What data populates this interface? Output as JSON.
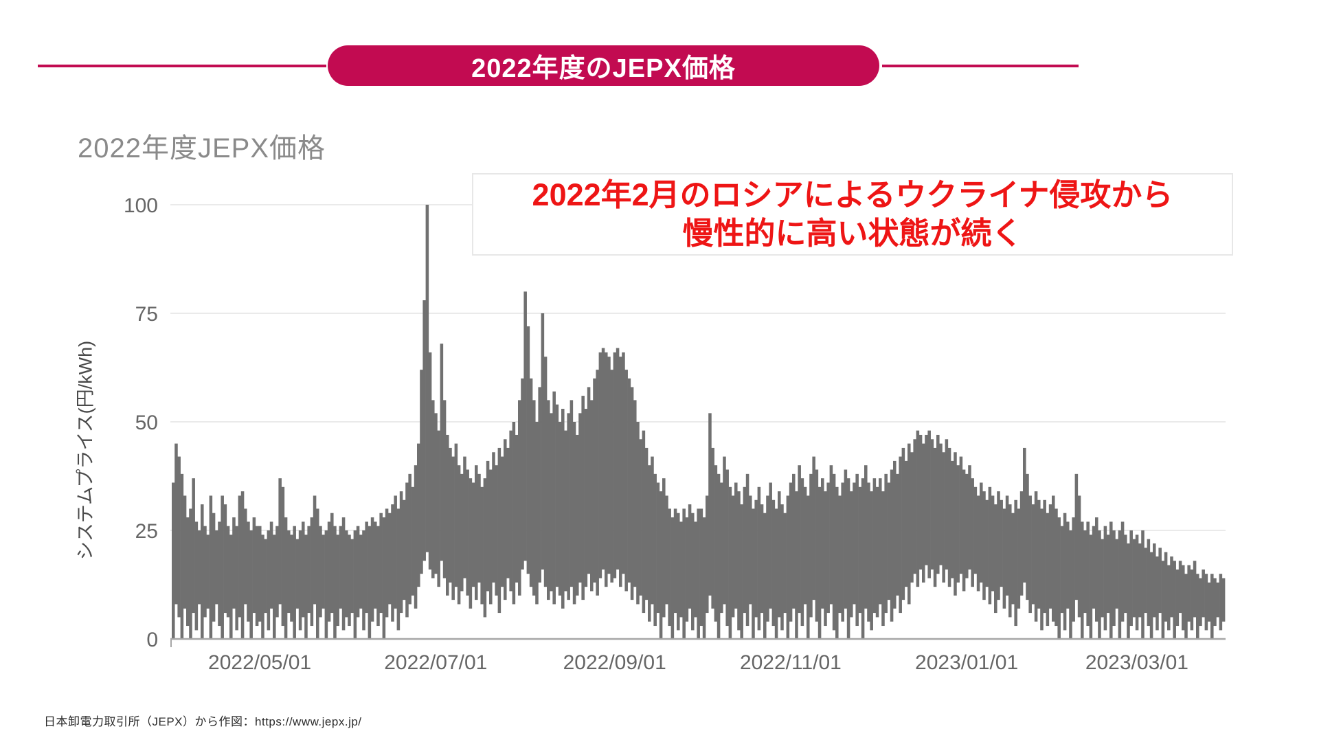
{
  "banner": {
    "title": "2022年度のJEPX価格",
    "color": "#c20b51"
  },
  "chart": {
    "title": "2022年度JEPX価格",
    "y_axis_label": "システムプライス(円/kWh)",
    "annotation": {
      "line1": "2022年2月のロシアによるウクライナ侵攻から",
      "line2": "慢性的に高い状態が続く",
      "text_color": "#ee1515"
    }
  },
  "footer": {
    "source": "日本卸電力取引所（JEPX）から作図：https://www.jepx.jp/"
  },
  "chart_data": {
    "type": "bar",
    "title": "2022年度JEPX価格",
    "xlabel": "",
    "ylabel": "システムプライス(円/kWh)",
    "ylim": [
      0,
      100
    ],
    "yticks": [
      0,
      25,
      50,
      75,
      100
    ],
    "grid": "horizontal",
    "legend": "none",
    "x_range": "2022/04/01 - 2023/03/31, daily",
    "x_ticks": [
      {
        "label": "2022/05/01",
        "day": 30
      },
      {
        "label": "2022/07/01",
        "day": 91
      },
      {
        "label": "2022/09/01",
        "day": 153
      },
      {
        "label": "2022/11/01",
        "day": 214
      },
      {
        "label": "2023/01/01",
        "day": 275
      },
      {
        "label": "2023/03/01",
        "day": 334
      }
    ],
    "series_note": "Daily range (min to max) of JEPX system price in JPY/kWh, values estimated from plot",
    "colors": {
      "bar": "#707070",
      "grid": "#e3e3e3",
      "axis": "#a6a6a6"
    },
    "months": [
      {
        "name": "2022-04",
        "tops": [
          36,
          45,
          42,
          38,
          33,
          28,
          30,
          37,
          27,
          25,
          31,
          26,
          24,
          33,
          29,
          25,
          27,
          33,
          31,
          26,
          24,
          28,
          26,
          33,
          34,
          30,
          27,
          25,
          28,
          26
        ],
        "lows": [
          0,
          8,
          5,
          0,
          7,
          3,
          0,
          6,
          2,
          8,
          0,
          5,
          7,
          0,
          4,
          8,
          3,
          0,
          6,
          5,
          0,
          7,
          2,
          5,
          0,
          8,
          4,
          0,
          6,
          3
        ]
      },
      {
        "name": "2022-05",
        "tops": [
          26,
          24,
          23,
          25,
          27,
          24,
          26,
          37,
          35,
          28,
          25,
          24,
          26,
          23,
          25,
          27,
          24,
          26,
          28,
          33,
          30,
          26,
          24,
          25,
          27,
          29,
          26,
          24,
          26,
          28,
          25
        ],
        "lows": [
          4,
          0,
          6,
          2,
          7,
          0,
          5,
          8,
          3,
          0,
          6,
          4,
          0,
          7,
          2,
          5,
          0,
          6,
          3,
          8,
          0,
          5,
          7,
          0,
          4,
          6,
          0,
          3,
          7,
          2,
          5
        ]
      },
      {
        "name": "2022-06",
        "tops": [
          24,
          23,
          25,
          26,
          24,
          25,
          27,
          26,
          28,
          27,
          26,
          29,
          28,
          30,
          29,
          31,
          33,
          30,
          34,
          32,
          36,
          38,
          35,
          40,
          45,
          62,
          78,
          100,
          66,
          55
        ],
        "lows": [
          3,
          6,
          0,
          5,
          7,
          2,
          6,
          0,
          4,
          7,
          3,
          6,
          0,
          5,
          8,
          4,
          7,
          2,
          6,
          9,
          5,
          8,
          10,
          7,
          12,
          15,
          18,
          20,
          16,
          14
        ]
      },
      {
        "name": "2022-07",
        "tops": [
          52,
          48,
          68,
          55,
          47,
          44,
          42,
          45,
          40,
          38,
          42,
          39,
          37,
          36,
          40,
          38,
          35,
          37,
          41,
          39,
          43,
          40,
          44,
          42,
          46,
          44,
          48,
          50,
          47,
          55,
          60
        ],
        "lows": [
          15,
          12,
          18,
          14,
          10,
          13,
          9,
          12,
          8,
          11,
          14,
          10,
          7,
          12,
          9,
          13,
          8,
          5,
          11,
          8,
          13,
          10,
          6,
          12,
          9,
          14,
          11,
          8,
          13,
          10,
          16
        ]
      },
      {
        "name": "2022-08",
        "tops": [
          80,
          72,
          60,
          55,
          50,
          58,
          75,
          65,
          55,
          52,
          57,
          54,
          50,
          53,
          48,
          52,
          55,
          50,
          47,
          52,
          56,
          53,
          58,
          55,
          60,
          62,
          66,
          67,
          66,
          65,
          62
        ],
        "lows": [
          18,
          15,
          12,
          10,
          8,
          13,
          16,
          12,
          9,
          11,
          8,
          12,
          10,
          7,
          11,
          9,
          12,
          8,
          10,
          13,
          9,
          12,
          15,
          11,
          13,
          10,
          14,
          16,
          12,
          15,
          13
        ]
      },
      {
        "name": "2022-09",
        "tops": [
          66,
          67,
          65,
          66,
          62,
          60,
          58,
          55,
          50,
          46,
          48,
          44,
          40,
          42,
          38,
          36,
          34,
          37,
          33,
          30,
          28,
          30,
          29,
          27,
          30,
          28,
          31,
          29,
          27,
          30
        ],
        "lows": [
          14,
          16,
          12,
          15,
          11,
          13,
          9,
          12,
          8,
          10,
          6,
          9,
          4,
          8,
          3,
          6,
          0,
          5,
          8,
          3,
          0,
          6,
          2,
          5,
          0,
          4,
          7,
          2,
          5,
          0
        ]
      },
      {
        "name": "2022-10",
        "tops": [
          30,
          28,
          33,
          52,
          44,
          40,
          38,
          36,
          42,
          39,
          35,
          33,
          36,
          34,
          31,
          35,
          38,
          33,
          30,
          32,
          35,
          31,
          29,
          33,
          36,
          32,
          30,
          34,
          31,
          29,
          33
        ],
        "lows": [
          3,
          0,
          6,
          10,
          7,
          4,
          0,
          6,
          8,
          3,
          0,
          5,
          7,
          2,
          0,
          6,
          3,
          8,
          0,
          5,
          2,
          6,
          0,
          4,
          7,
          3,
          0,
          5,
          2,
          6,
          0
        ]
      },
      {
        "name": "2022-11",
        "tops": [
          36,
          38,
          34,
          40,
          37,
          35,
          33,
          38,
          42,
          39,
          35,
          37,
          34,
          36,
          40,
          38,
          35,
          33,
          36,
          39,
          37,
          34,
          36,
          38,
          35,
          37,
          40,
          36,
          34,
          37
        ],
        "lows": [
          4,
          7,
          0,
          6,
          3,
          8,
          0,
          5,
          9,
          4,
          0,
          7,
          3,
          6,
          8,
          2,
          0,
          6,
          4,
          7,
          0,
          5,
          8,
          3,
          6,
          0,
          7,
          4,
          2,
          6
        ]
      },
      {
        "name": "2022-12",
        "tops": [
          35,
          37,
          34,
          38,
          36,
          39,
          41,
          38,
          42,
          44,
          41,
          45,
          43,
          46,
          48,
          47,
          45,
          47,
          48,
          46,
          44,
          47,
          45,
          43,
          46,
          44,
          41,
          43,
          40,
          42,
          39
        ],
        "lows": [
          5,
          8,
          3,
          6,
          9,
          4,
          7,
          10,
          6,
          9,
          12,
          8,
          13,
          15,
          12,
          16,
          13,
          17,
          14,
          16,
          12,
          15,
          17,
          13,
          16,
          12,
          14,
          10,
          13,
          15,
          11
        ]
      },
      {
        "name": "2023-01",
        "tops": [
          38,
          40,
          37,
          35,
          33,
          36,
          34,
          32,
          35,
          33,
          31,
          34,
          32,
          30,
          33,
          31,
          29,
          32,
          30,
          34,
          44,
          38,
          33,
          31,
          34,
          32,
          30,
          32,
          29,
          31,
          33
        ],
        "lows": [
          14,
          16,
          12,
          15,
          11,
          13,
          9,
          12,
          8,
          11,
          6,
          9,
          12,
          7,
          10,
          5,
          8,
          3,
          7,
          10,
          13,
          9,
          6,
          8,
          4,
          7,
          2,
          6,
          3,
          7,
          4
        ]
      },
      {
        "name": "2023-02",
        "tops": [
          30,
          28,
          26,
          29,
          27,
          25,
          28,
          38,
          33,
          27,
          25,
          27,
          24,
          26,
          28,
          25,
          23,
          26,
          24,
          27,
          25,
          23,
          25,
          27,
          24,
          22,
          25,
          23
        ],
        "lows": [
          3,
          0,
          6,
          2,
          7,
          0,
          4,
          9,
          5,
          0,
          6,
          3,
          0,
          7,
          4,
          0,
          5,
          2,
          6,
          0,
          3,
          7,
          0,
          4,
          6,
          0,
          3,
          5
        ]
      },
      {
        "name": "2023-03",
        "tops": [
          24,
          22,
          25,
          21,
          23,
          20,
          22,
          19,
          21,
          18,
          20,
          17,
          19,
          18,
          16,
          18,
          17,
          15,
          17,
          16,
          18,
          15,
          14,
          16,
          15,
          13,
          15,
          14,
          13,
          15,
          14
        ],
        "lows": [
          2,
          5,
          0,
          6,
          3,
          0,
          5,
          2,
          6,
          0,
          4,
          2,
          5,
          0,
          3,
          6,
          2,
          0,
          4,
          2,
          5,
          0,
          3,
          5,
          2,
          4,
          0,
          3,
          5,
          2,
          4
        ]
      }
    ]
  }
}
